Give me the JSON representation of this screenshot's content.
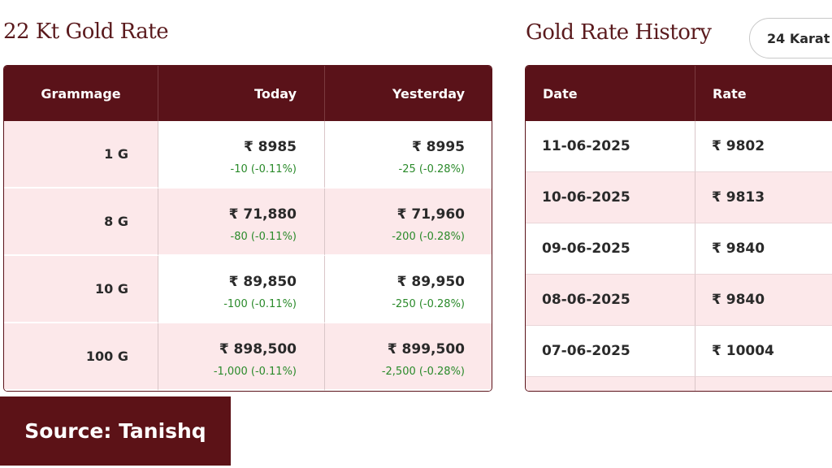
{
  "rate_table": {
    "title": "22 Kt Gold Rate",
    "headers": [
      "Grammage",
      "Today",
      "Yesterday"
    ],
    "rows": [
      [
        "1 G",
        "₹ 8985",
        "-10 (-0.11%)",
        "₹ 8995",
        "-25 (-0.28%)"
      ],
      [
        "8 G",
        "₹ 71,880",
        "-80 (-0.11%)",
        "₹ 71,960",
        "-200 (-0.28%)"
      ],
      [
        "10 G",
        "₹ 89,850",
        "-100 (-0.11%)",
        "₹ 89,950",
        "-250 (-0.28%)"
      ],
      [
        "100 G",
        "₹ 898,500",
        "-1,000 (-0.11%)",
        "₹ 899,500",
        "-2,500 (-0.28%)"
      ]
    ]
  },
  "history": {
    "title": "Gold Rate History",
    "karat_button": "24 Karat",
    "headers": [
      "Date",
      "Rate"
    ],
    "rows": [
      [
        "11-06-2025",
        "₹ 9802"
      ],
      [
        "10-06-2025",
        "₹ 9813"
      ],
      [
        "09-06-2025",
        "₹ 9840"
      ],
      [
        "08-06-2025",
        "₹ 9840"
      ],
      [
        "07-06-2025",
        "₹ 10004"
      ]
    ]
  },
  "source": "Source: Tanishq"
}
